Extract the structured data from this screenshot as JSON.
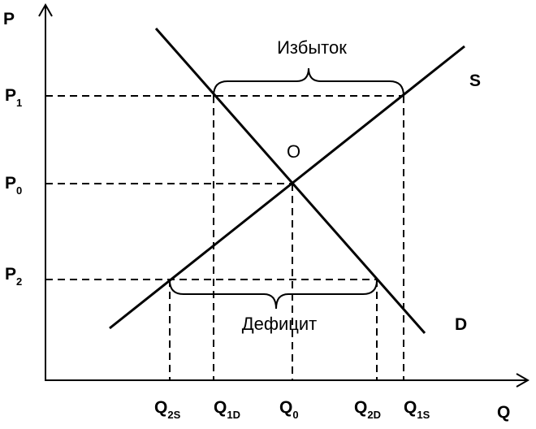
{
  "axes": {
    "y": "P",
    "x": "Q"
  },
  "price_levels": [
    {
      "main": "P",
      "sub": "1"
    },
    {
      "main": "P",
      "sub": "0"
    },
    {
      "main": "P",
      "sub": "2"
    }
  ],
  "quantities": [
    {
      "main": "Q",
      "sub": "2S"
    },
    {
      "main": "Q",
      "sub": "1D"
    },
    {
      "main": "Q",
      "sub": "0"
    },
    {
      "main": "Q",
      "sub": "2D"
    },
    {
      "main": "Q",
      "sub": "1S"
    }
  ],
  "curves": {
    "supply": "S",
    "demand": "D"
  },
  "equilibrium": "O",
  "surplus": "Избыток",
  "deficit": "Дефицит"
}
